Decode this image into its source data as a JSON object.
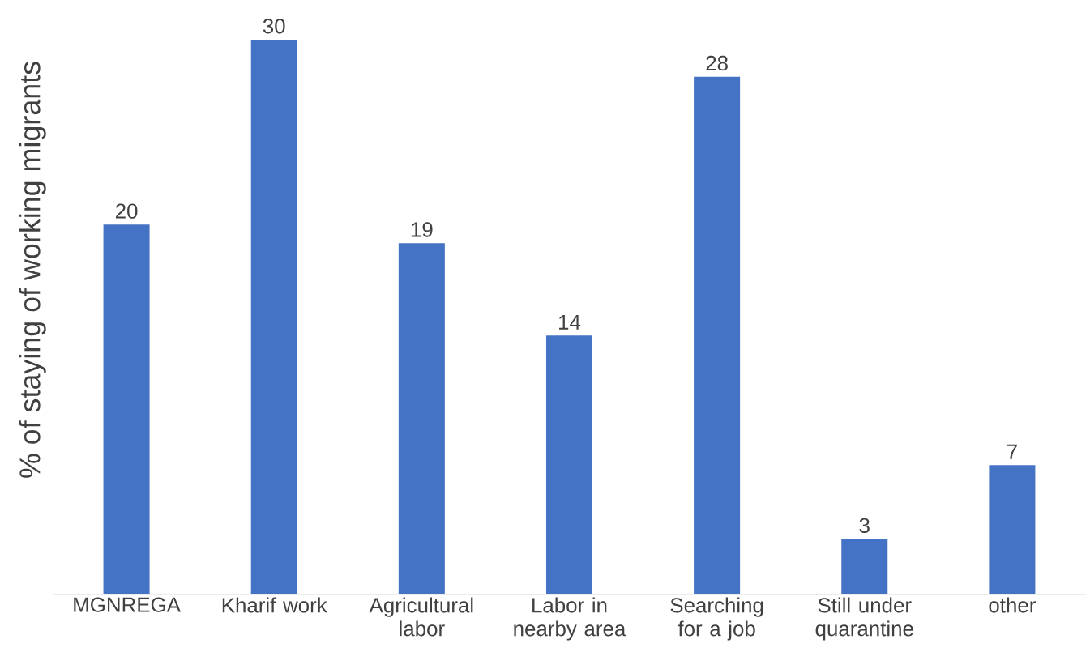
{
  "chart_data": {
    "type": "bar",
    "ylabel": "% of staying of working migrants",
    "categories": [
      "MGNREGA",
      "Kharif work",
      "Agricultural labor",
      "Labor in nearby area",
      "Searching for a job",
      "Still under quarantine",
      "other"
    ],
    "values": [
      20,
      30,
      19,
      14,
      28,
      3,
      7
    ],
    "color": "#4472c4",
    "data_labels": true
  }
}
